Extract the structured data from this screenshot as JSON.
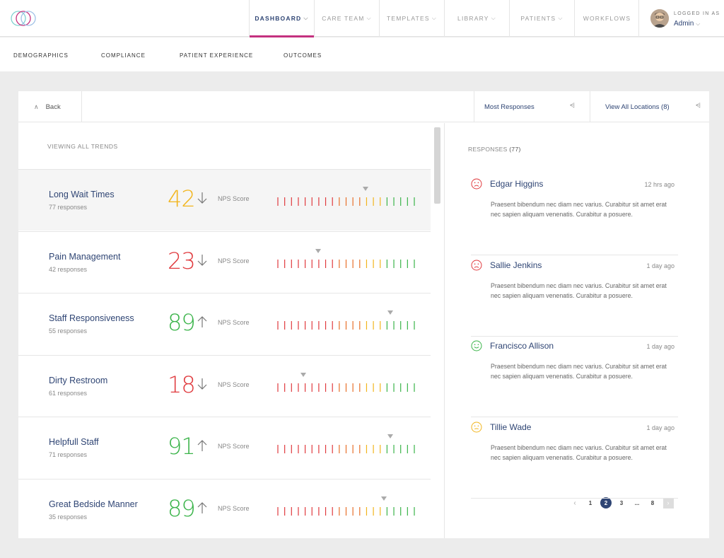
{
  "nav": {
    "items": [
      {
        "label": "DASHBOARD",
        "active": true
      },
      {
        "label": "CARE TEAM",
        "active": false
      },
      {
        "label": "TEMPLATES",
        "active": false
      },
      {
        "label": "LIBRARY",
        "active": false
      },
      {
        "label": "PATIENTS",
        "active": false
      },
      {
        "label": "WORKFLOWS",
        "active": false
      }
    ],
    "logged_in_label": "LOGGED IN AS",
    "user": "Admin"
  },
  "subnav": [
    "DEMOGRAPHICS",
    "COMPLIANCE",
    "PATIENT EXPERIENCE",
    "OUTCOMES"
  ],
  "toolbar": {
    "back_label": "Back",
    "sort_label": "Most Responses",
    "location_label": "View All Locations (8)"
  },
  "trends_title": "VIEWING ALL TRENDS",
  "score_label": "NPS Score",
  "colors": {
    "accent": "#c4317f",
    "navy": "#2f4574",
    "good": "#3bb44a",
    "bad": "#e03a3e",
    "warn": "#f2b51d"
  },
  "trends": [
    {
      "name": "Long Wait Times",
      "responses": "77 responses",
      "score": "42",
      "direction": "down",
      "level": 0.65
    },
    {
      "name": "Pain Management",
      "responses": "42 responses",
      "score": "23",
      "direction": "down",
      "level": 0.3
    },
    {
      "name": "Staff Responsiveness",
      "responses": "55 responses",
      "score": "89",
      "direction": "up",
      "level": 0.83
    },
    {
      "name": "Dirty Restroom",
      "responses": "61 responses",
      "score": "18",
      "direction": "down",
      "level": 0.19
    },
    {
      "name": "Helpfull Staff",
      "responses": "71 responses",
      "score": "91",
      "direction": "up",
      "level": 0.83
    },
    {
      "name": "Great Bedside Manner",
      "responses": "35 responses",
      "score": "89",
      "direction": "up",
      "level": 0.78
    }
  ],
  "responses_title": "RESPONSES",
  "responses_count": "(77)",
  "responses": [
    {
      "name": "Edgar Higgins",
      "time": "12 hrs ago",
      "mood": "sad",
      "text": "Praesent bibendum nec diam nec varius. Curabitur sit amet erat nec sapien aliquam venenatis. Curabitur a posuere."
    },
    {
      "name": "Sallie Jenkins",
      "time": "1 day ago",
      "mood": "sad",
      "text": "Praesent bibendum nec diam nec varius. Curabitur sit amet erat nec sapien aliquam venenatis. Curabitur a posuere."
    },
    {
      "name": "Francisco Allison",
      "time": "1 day ago",
      "mood": "happy",
      "text": "Praesent bibendum nec diam nec varius. Curabitur sit amet erat nec sapien aliquam venenatis. Curabitur a posuere."
    },
    {
      "name": "Tillie Wade",
      "time": "1 day ago",
      "mood": "neutral",
      "text": "Praesent bibendum nec diam nec varius. Curabitur sit amet erat nec sapien aliquam venenatis. Curabitur a posuere."
    }
  ],
  "pagination": {
    "prev": "‹",
    "pages": [
      "1",
      "2",
      "3",
      "...",
      "8"
    ],
    "current": "2",
    "next": "›"
  }
}
